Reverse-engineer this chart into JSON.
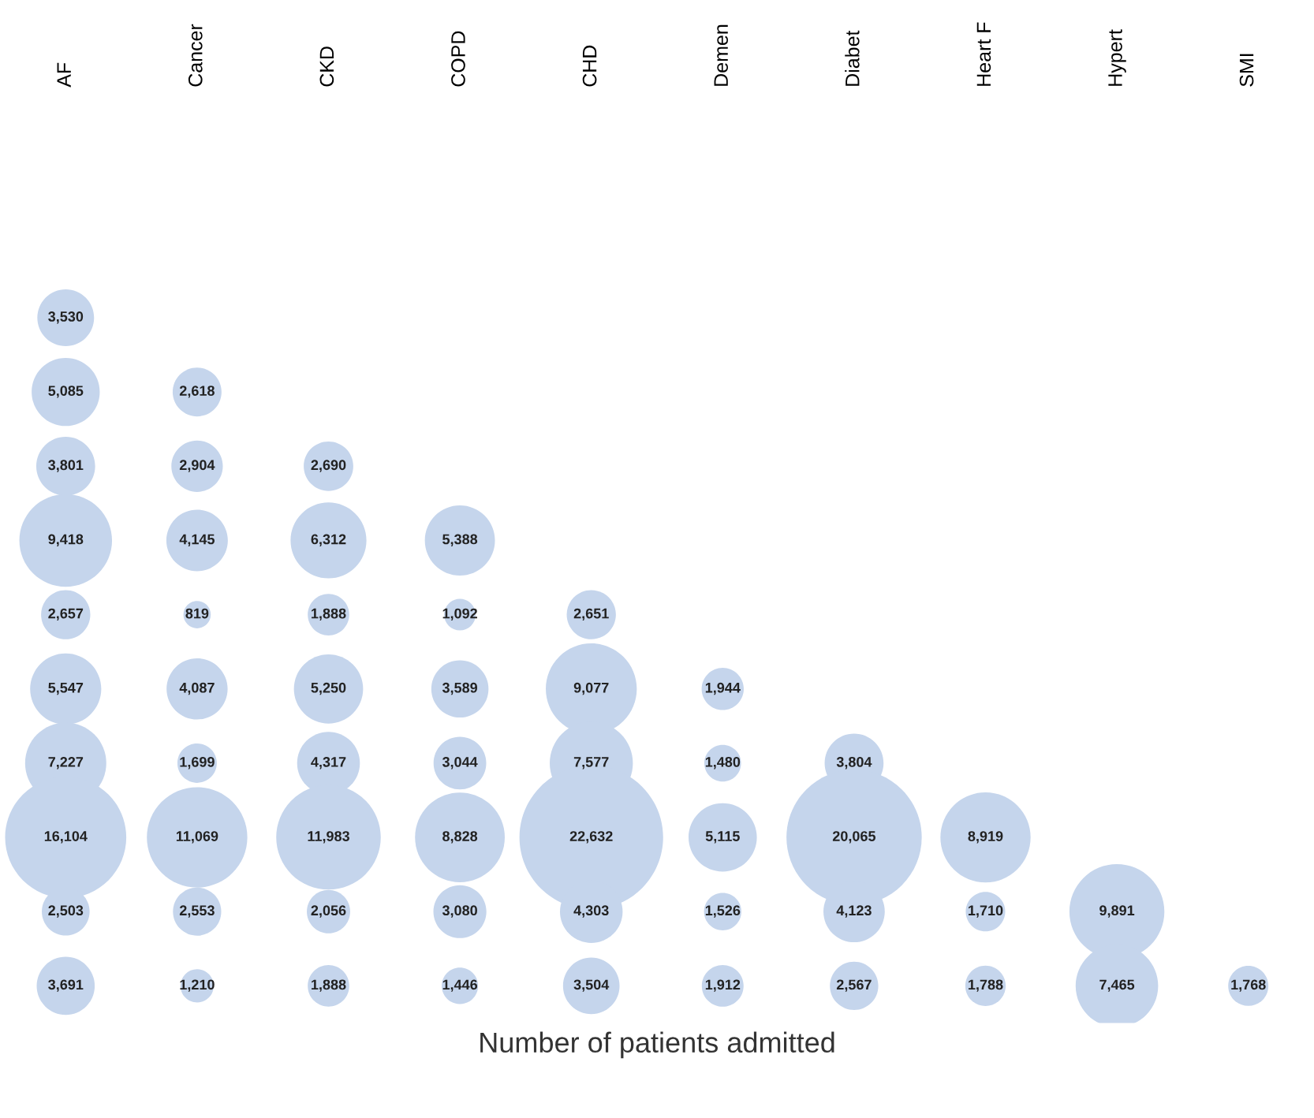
{
  "chart_data": {
    "type": "other",
    "xlabel": "Number of patients admitted",
    "categories": [
      "AF",
      "Cancer",
      "CKD",
      "COPD",
      "CHD",
      "Demen",
      "Diabet",
      "Heart F",
      "Hypert",
      "SMI"
    ],
    "series": [
      {
        "color": "#c5d5ec",
        "values": [
          3530,
          null,
          null,
          null,
          null,
          null,
          null,
          null,
          null,
          null
        ],
        "value_labels": [
          "3,530",
          null,
          null,
          null,
          null,
          null,
          null,
          null,
          null,
          null
        ]
      },
      {
        "color": "#c5d5ec",
        "values": [
          5085,
          2618,
          null,
          null,
          null,
          null,
          null,
          null,
          null,
          null
        ],
        "value_labels": [
          "5,085",
          "2,618",
          null,
          null,
          null,
          null,
          null,
          null,
          null,
          null
        ]
      },
      {
        "color": "#c5d5ec",
        "values": [
          3801,
          2904,
          2690,
          null,
          null,
          null,
          null,
          null,
          null,
          null
        ],
        "value_labels": [
          "3,801",
          "2,904",
          "2,690",
          null,
          null,
          null,
          null,
          null,
          null,
          null
        ]
      },
      {
        "color": "#c5d5ec",
        "values": [
          9418,
          4145,
          6312,
          5388,
          null,
          null,
          null,
          null,
          null,
          null
        ],
        "value_labels": [
          "9,418",
          "4,145",
          "6,312",
          "5,388",
          null,
          null,
          null,
          null,
          null,
          null
        ]
      },
      {
        "color": "#c5d5ec",
        "values": [
          2657,
          819,
          1888,
          1092,
          2651,
          null,
          null,
          null,
          null,
          null
        ],
        "value_labels": [
          "2,657",
          "819",
          "1,888",
          "1,092",
          "2,651",
          null,
          null,
          null,
          null,
          null
        ]
      },
      {
        "color": "#c5d5ec",
        "values": [
          5547,
          4087,
          5250,
          3589,
          9077,
          1944,
          null,
          null,
          null,
          null
        ],
        "value_labels": [
          "5,547",
          "4,087",
          "5,250",
          "3,589",
          "9,077",
          "1,944",
          null,
          null,
          null,
          null
        ]
      },
      {
        "color": "#c5d5ec",
        "values": [
          7227,
          1699,
          4317,
          3044,
          7577,
          1480,
          3804,
          null,
          null,
          null
        ],
        "value_labels": [
          "7,227",
          "1,699",
          "4,317",
          "3,044",
          "7,577",
          "1,480",
          "3,804",
          null,
          null,
          null
        ]
      },
      {
        "color": "#c5d5ec",
        "values": [
          16104,
          11069,
          11983,
          8828,
          22632,
          5115,
          20065,
          8919,
          null,
          null
        ],
        "value_labels": [
          "16,104",
          "11,069",
          "11,983",
          "8,828",
          "22,632",
          "5,115",
          "20,065",
          "8,919",
          null,
          null
        ]
      },
      {
        "color": "#c5d5ec",
        "values": [
          2503,
          2553,
          2056,
          3080,
          4303,
          1526,
          4123,
          1710,
          9891,
          null
        ],
        "value_labels": [
          "2,503",
          "2,553",
          "2,056",
          "3,080",
          "4,303",
          "1,526",
          "4,123",
          "1,710",
          "9,891",
          null
        ]
      },
      {
        "color": "#c5d5ec",
        "values": [
          3691,
          1210,
          1888,
          1446,
          3504,
          1912,
          2567,
          1788,
          7465,
          1768
        ],
        "value_labels": [
          "3,691",
          "1,210",
          "1,888",
          "1,446",
          "3,504",
          "1,912",
          "2,567",
          "1,788",
          "7,465",
          "1,768"
        ]
      }
    ]
  }
}
